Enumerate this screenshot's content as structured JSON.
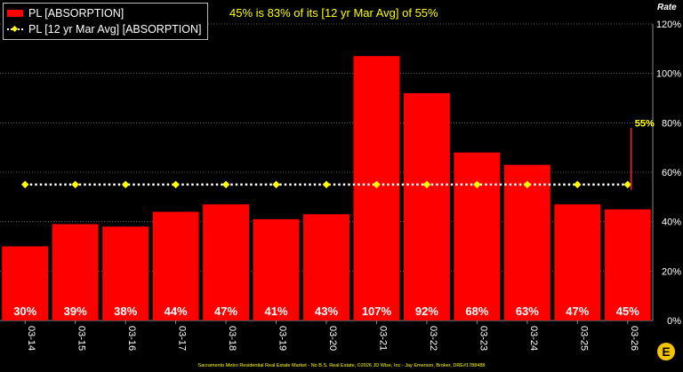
{
  "headline": "45% is 83% of its [12 yr Mar Avg] of 55%",
  "legend": {
    "bar_label": "PL [ABSORPTION]",
    "avg_label": "PL [12 yr Mar Avg] [ABSORPTION]"
  },
  "footer": "Sacramento Metro Residential Real Estate Market - No B.S. Real Estate, ©2026 JD Wise, Inc - Jay Emerson, Broker, DRE#1788488",
  "logo_text": "E",
  "colors": {
    "bar": "#ff0000",
    "avg": "#ffff00",
    "background": "#000000",
    "text": "#ffffff"
  },
  "chart_data": {
    "type": "bar",
    "categories": [
      "03-14",
      "03-15",
      "03-16",
      "03-17",
      "03-18",
      "03-19",
      "03-20",
      "03-21",
      "03-22",
      "03-23",
      "03-24",
      "03-25",
      "03-26"
    ],
    "series": [
      {
        "name": "PL [ABSORPTION]",
        "type": "bar",
        "values": [
          30,
          39,
          38,
          44,
          47,
          41,
          43,
          107,
          92,
          68,
          63,
          47,
          45
        ],
        "labels": [
          "30%",
          "39%",
          "38%",
          "44%",
          "47%",
          "41%",
          "43%",
          "107%",
          "92%",
          "68%",
          "63%",
          "47%",
          "45%"
        ]
      },
      {
        "name": "PL [12 yr Mar Avg] [ABSORPTION]",
        "type": "line",
        "values": [
          55,
          55,
          55,
          55,
          55,
          55,
          55,
          55,
          55,
          55,
          55,
          55,
          55
        ]
      }
    ],
    "avg_annotation": "55%",
    "ylabel": "Rate",
    "ylim": [
      0,
      120
    ],
    "yticks": [
      "0%",
      "20%",
      "40%",
      "60%",
      "80%",
      "100%",
      "120%"
    ],
    "grid": true,
    "legend_position": "top-left"
  }
}
